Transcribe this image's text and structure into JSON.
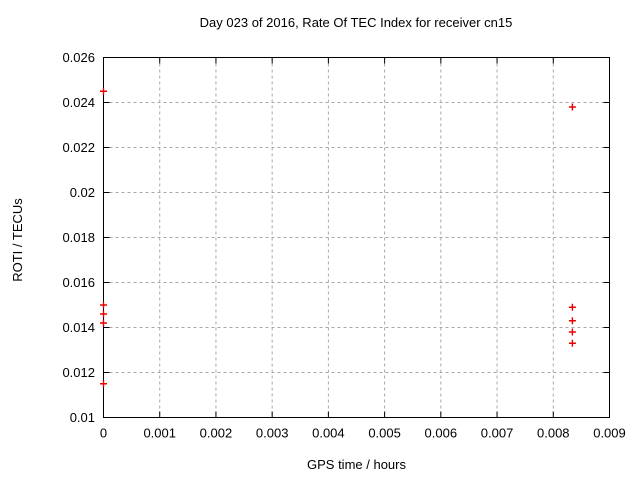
{
  "chart_data": {
    "type": "scatter",
    "title": "Day 023 of 2016, Rate Of TEC Index for receiver cn15",
    "xlabel": "GPS time / hours",
    "ylabel": "ROTI / TECUs",
    "xlim": [
      0,
      0.009
    ],
    "ylim": [
      0.01,
      0.026
    ],
    "xticks": [
      "0",
      "0.001",
      "0.002",
      "0.003",
      "0.004",
      "0.005",
      "0.006",
      "0.007",
      "0.008",
      "0.009"
    ],
    "yticks": [
      "0.01",
      "0.012",
      "0.014",
      "0.016",
      "0.018",
      "0.02",
      "0.022",
      "0.024",
      "0.026"
    ],
    "grid": true,
    "legend_position": "none",
    "marker": "plus",
    "series": [
      {
        "points": [
          [
            0,
            0.0245
          ],
          [
            0,
            0.015
          ],
          [
            0,
            0.0146
          ],
          [
            0,
            0.0142
          ],
          [
            0,
            0.0115
          ],
          [
            0.00834,
            0.0238
          ],
          [
            0.00834,
            0.0149
          ],
          [
            0.00834,
            0.0143
          ],
          [
            0.00834,
            0.0138
          ],
          [
            0.00834,
            0.0133
          ]
        ]
      }
    ],
    "colors": {
      "points": "#e60000",
      "grid": "#a8a8a8",
      "axis": "#000000",
      "text": "#000000",
      "background": "#ffffff"
    }
  }
}
